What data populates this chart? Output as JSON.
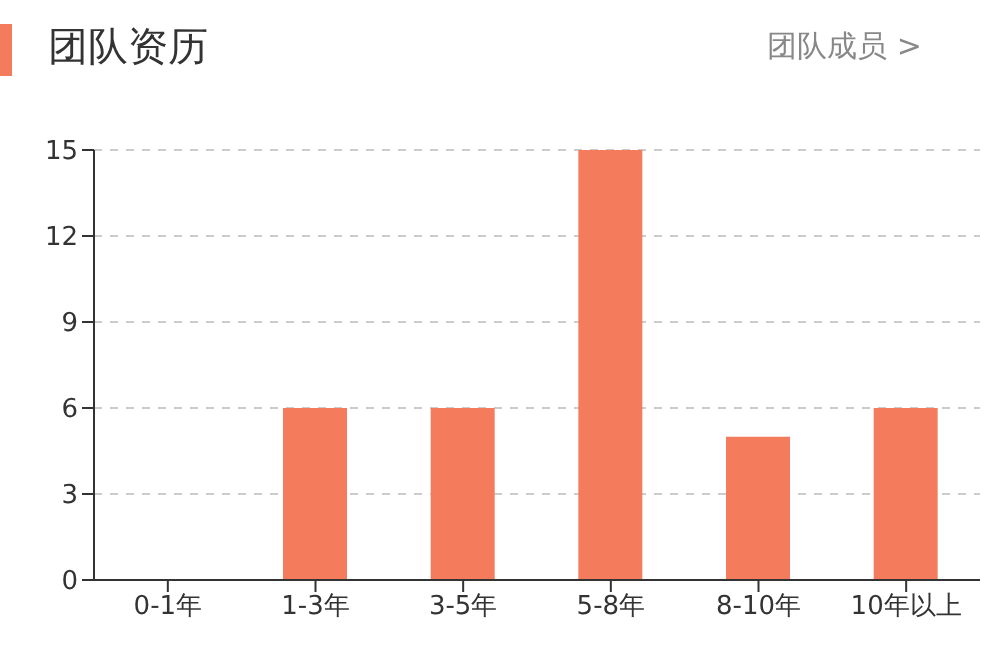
{
  "chart_data": {
    "type": "bar",
    "title": "团队资历",
    "annotations": [
      "团队成员 >"
    ],
    "categories": [
      "0-1年",
      "1-3年",
      "3-5年",
      "5-8年",
      "8-10年",
      "10年以上"
    ],
    "values": [
      0,
      6,
      6,
      15,
      5,
      6
    ],
    "color": "#f47c5c",
    "ylim": [
      0,
      15
    ],
    "yticks": [
      0,
      3,
      6,
      9,
      12,
      15
    ],
    "grid": "y"
  }
}
